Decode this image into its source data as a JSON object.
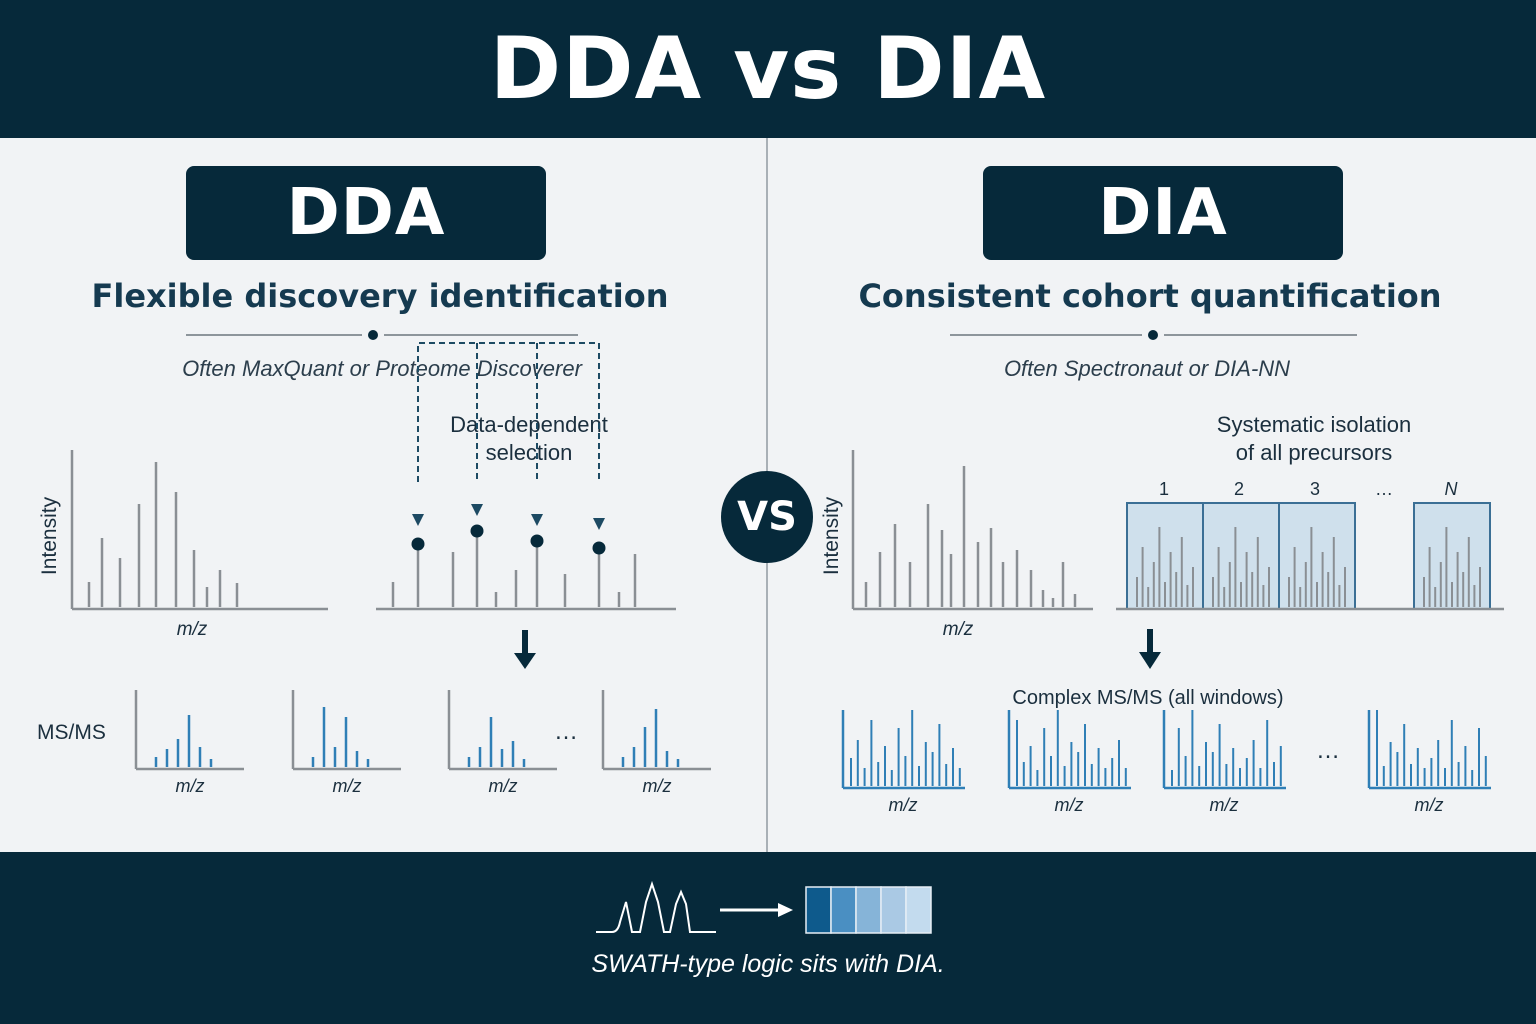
{
  "title": "DDA vs DIA",
  "vs_label": "VS",
  "dda": {
    "heading": "DDA",
    "subtitle": "Flexible discovery identification",
    "tools": "Often MaxQuant or Proteome Discoverer",
    "y_label": "Intensity",
    "x_label": "m/z",
    "selection_label_line1": "Data-dependent",
    "selection_label_line2": "selection",
    "msms_label": "MS/MS",
    "ellipsis": "…",
    "msms_x_label": "m/z"
  },
  "dia": {
    "heading": "DIA",
    "subtitle": "Consistent cohort quantification",
    "tools": "Often Spectronaut or DIA-NN",
    "y_label": "Intensity",
    "x_label": "m/z",
    "isolation_label_line1": "Systematic isolation",
    "isolation_label_line2": "of all precursors",
    "window_labels": [
      "1",
      "2",
      "3",
      "…",
      "N"
    ],
    "msms_label": "Complex MS/MS (all windows)",
    "ellipsis": "…",
    "msms_x_label": "m/z"
  },
  "footer": {
    "caption": "SWATH-type logic sits with DIA."
  },
  "colors": {
    "navy": "#06293a",
    "peak_gray": "#8a8f94",
    "ms2_blue": "#2f7fb6",
    "window_fill": "#c9dcea"
  }
}
